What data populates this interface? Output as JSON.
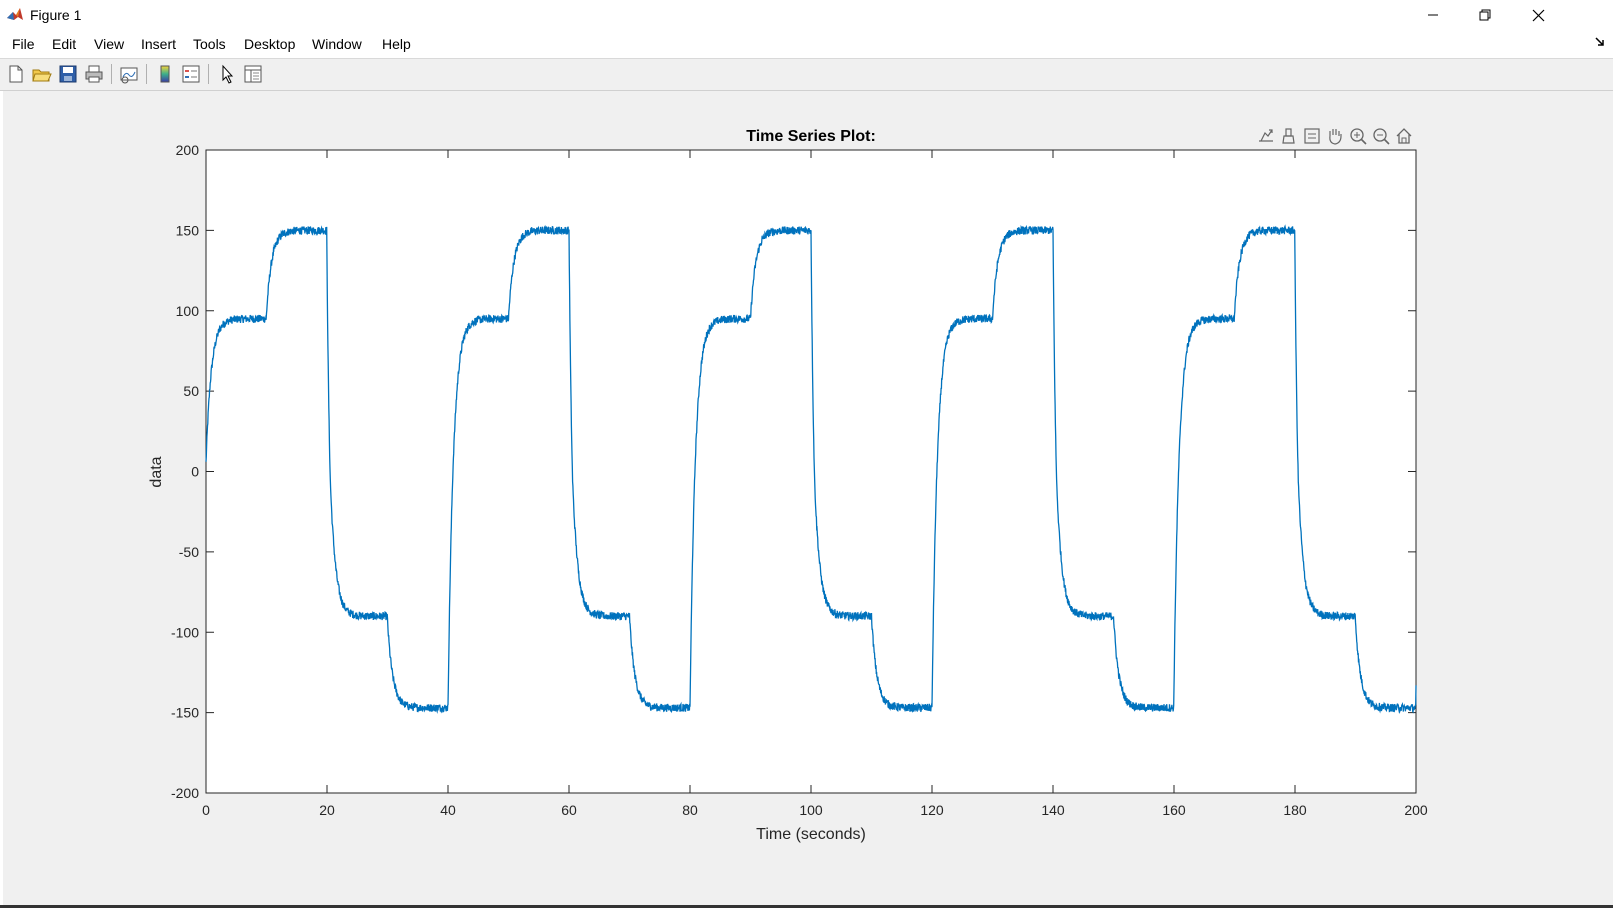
{
  "window": {
    "title": "Figure 1",
    "icon": "matlab-logo",
    "controls": [
      "minimize-icon",
      "restore-icon",
      "close-icon"
    ]
  },
  "menu": {
    "items": [
      "File",
      "Edit",
      "View",
      "Insert",
      "Tools",
      "Desktop",
      "Window",
      "Help"
    ]
  },
  "toolbar": {
    "buttons": [
      "new-figure-icon",
      "open-file-icon",
      "save-icon",
      "print-icon",
      "link-plot-icon",
      "insert-colorbar-icon",
      "insert-legend-icon",
      "edit-plot-pointer-icon",
      "property-inspector-icon"
    ]
  },
  "axes_toolbar": {
    "buttons": [
      "export-icon",
      "brush-icon",
      "data-tips-icon",
      "pan-hand-icon",
      "zoom-in-icon",
      "zoom-out-icon",
      "restore-view-home-icon"
    ]
  },
  "colors": {
    "line": "#0072BD",
    "figure_bg": "#f0f0f0",
    "axes_bg": "#ffffff"
  },
  "chart_data": {
    "type": "line",
    "title": "Time Series Plot:",
    "xlabel": "Time (seconds)",
    "ylabel": "data",
    "xlim": [
      0,
      200
    ],
    "ylim": [
      -200,
      200
    ],
    "xticks": [
      0,
      20,
      40,
      60,
      80,
      100,
      120,
      140,
      160,
      180,
      200
    ],
    "yticks": [
      -200,
      -150,
      -100,
      -50,
      0,
      50,
      100,
      150,
      200
    ],
    "grid": false,
    "period_seconds": 40,
    "segments": [
      {
        "start": 0,
        "end": 10,
        "level": 95
      },
      {
        "start": 10,
        "end": 20,
        "level": 150
      },
      {
        "start": 20,
        "end": 30,
        "level": -90
      },
      {
        "start": 30,
        "end": 40,
        "level": -147
      }
    ],
    "initial_value": 0,
    "noise_amplitude": 2.5,
    "series": [
      {
        "values_description_free": true
      }
    ]
  }
}
